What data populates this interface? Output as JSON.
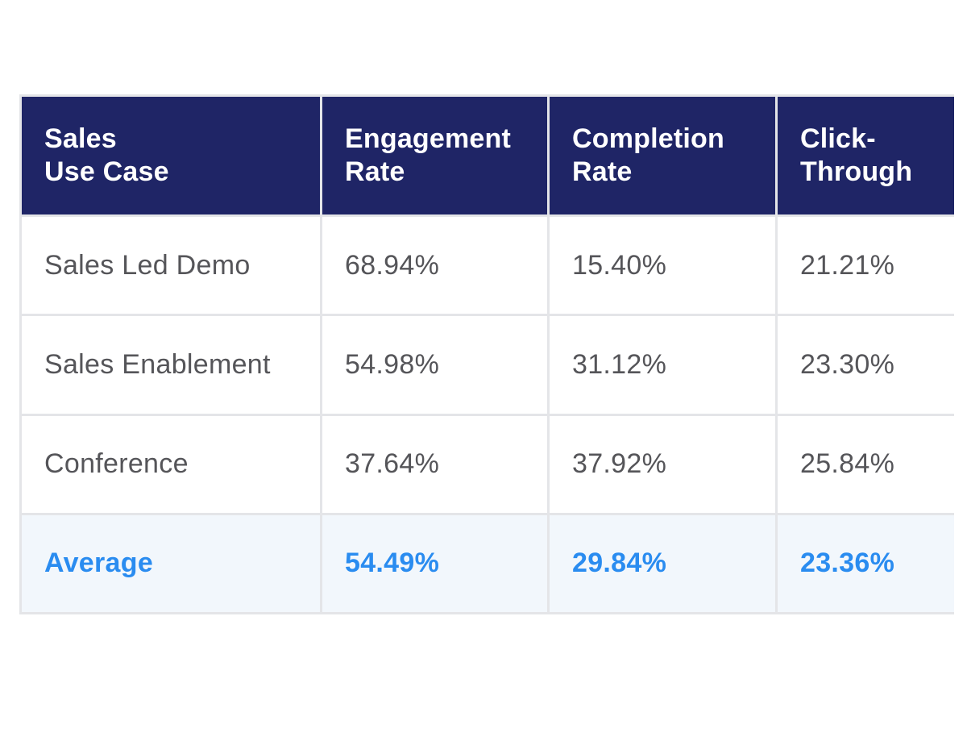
{
  "chart_data": {
    "type": "table",
    "columns": [
      [
        "Sales",
        "Use Case"
      ],
      [
        "Engagement",
        "Rate"
      ],
      [
        "Completion",
        "Rate"
      ],
      [
        "Click-",
        "Through"
      ]
    ],
    "rows": [
      [
        "Sales Led Demo",
        "68.94%",
        "15.40%",
        "21.21%"
      ],
      [
        "Sales Enablement",
        "54.98%",
        "31.12%",
        "23.30%"
      ],
      [
        "Conference",
        "37.64%",
        "37.92%",
        "25.84%"
      ]
    ],
    "summary_row": [
      "Average",
      "54.49%",
      "29.84%",
      "23.36%"
    ]
  },
  "colors": {
    "header_bg": "#1f2566",
    "header_text": "#ffffff",
    "body_text": "#555559",
    "average_text": "#2a8cf0",
    "average_bg": "#f2f7fc",
    "grid": "#e4e5e8"
  }
}
